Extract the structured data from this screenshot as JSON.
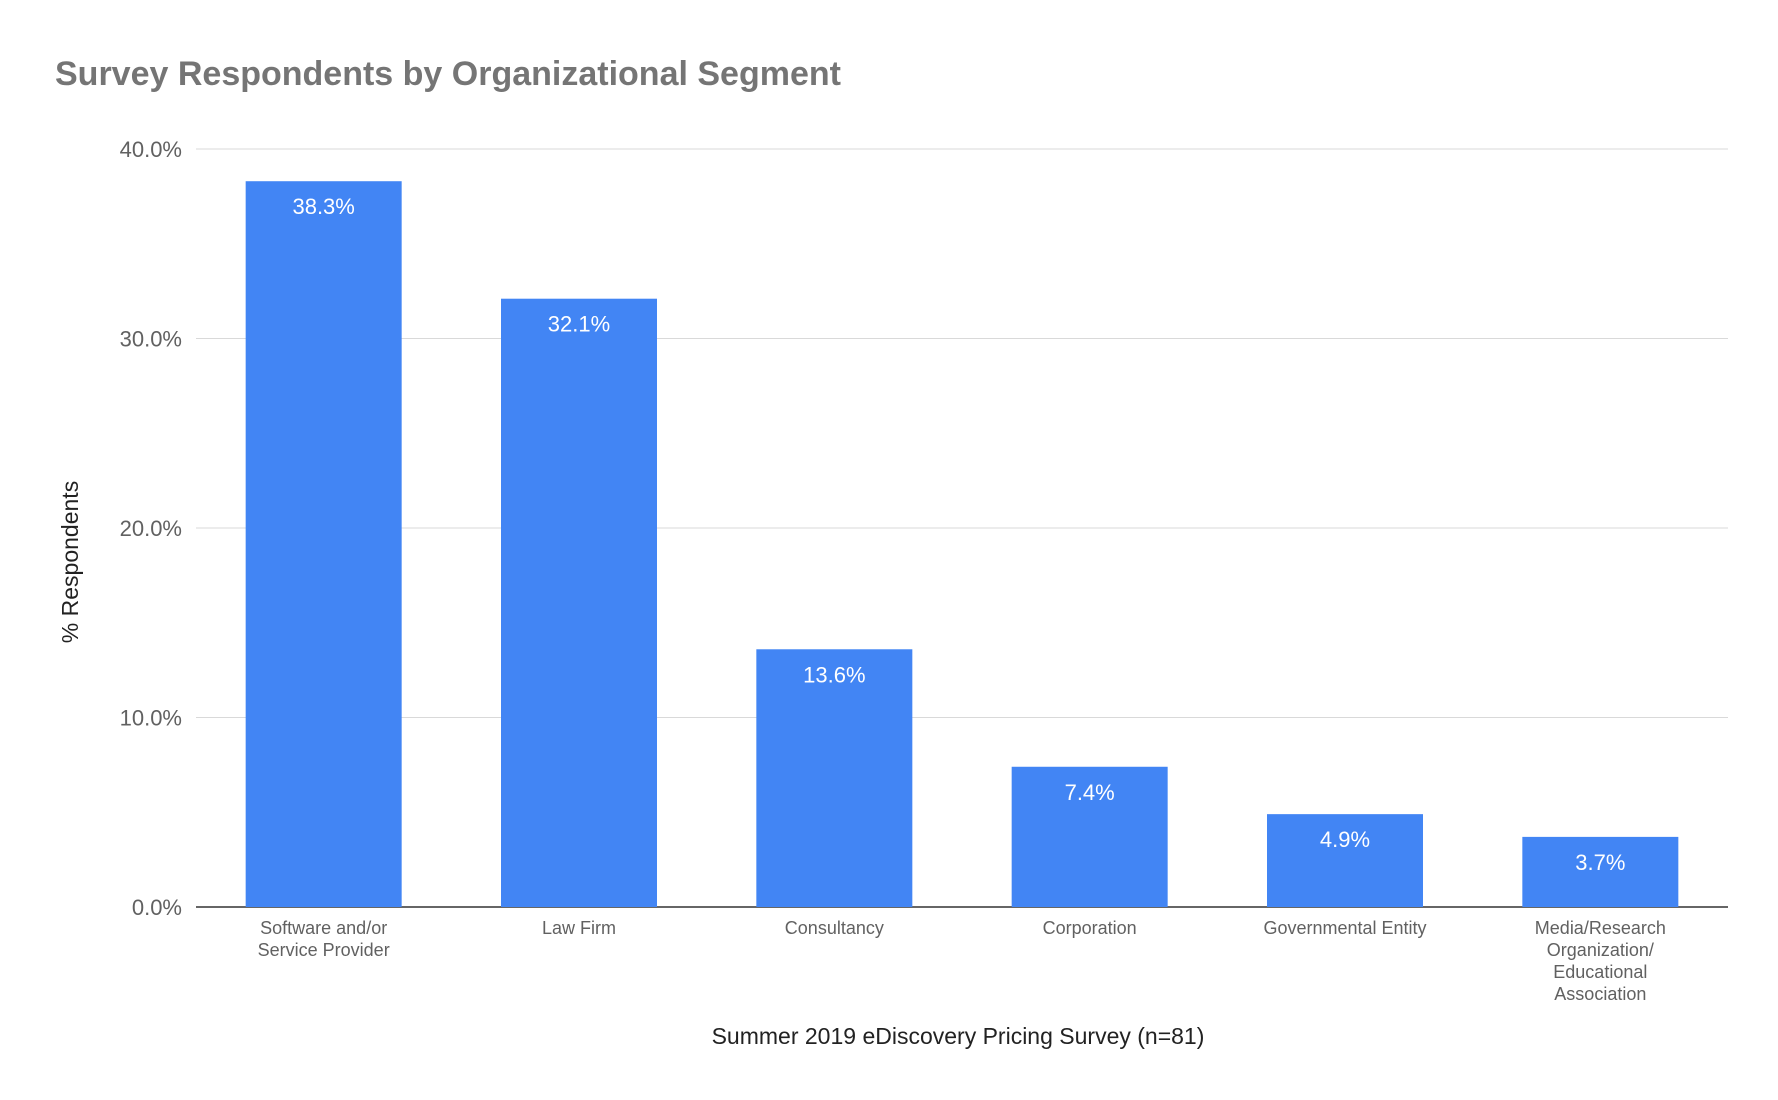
{
  "chart_data": {
    "type": "bar",
    "title": "Survey Respondents by Organizational Segment",
    "xlabel": "Summer 2019 eDiscovery Pricing Survey (n=81)",
    "ylabel": "% Respondents",
    "categories": [
      "Software and/or Service Provider",
      "Law Firm",
      "Consultancy",
      "Corporation",
      "Governmental Entity",
      "Media/Research Organization/Educational Association"
    ],
    "values": [
      38.3,
      32.1,
      13.6,
      7.4,
      4.9,
      3.7
    ],
    "data_labels": [
      "38.3%",
      "32.1%",
      "13.6%",
      "7.4%",
      "4.9%",
      "3.7%"
    ],
    "ylim": [
      0,
      40
    ],
    "yticks": [
      0,
      10,
      20,
      30,
      40
    ],
    "ytick_labels": [
      "0.0%",
      "10.0%",
      "20.0%",
      "30.0%",
      "40.0%"
    ],
    "grid": true,
    "legend": "none",
    "bar_color": "#4285f4"
  }
}
